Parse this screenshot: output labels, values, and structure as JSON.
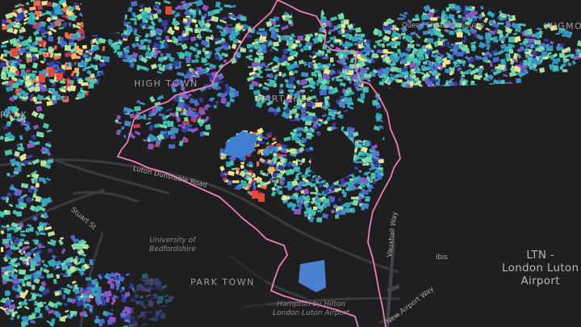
{
  "map": {
    "areas": [
      "HIGH TOWN",
      "HART HILL",
      "PARK TOWN",
      "WIGMORE",
      "PARK"
    ],
    "roads": {
      "luton_dunstable": "Luton Dunstable Road",
      "queen_elizabeth": "Queen Elizabeth Square",
      "stuart": "Stuart St",
      "vauxhall": "Vauxhall Way",
      "new_airport": "New Airport Way",
      "ibis": "ibis"
    },
    "pois": {
      "university": [
        "University of",
        "Bedfordshire"
      ],
      "hampton": [
        "Hampton by Hilton",
        "London Luton Airport"
      ]
    },
    "airport_label": [
      "LTN -",
      "London Luton",
      "Airport"
    ],
    "colors": {
      "background": "#1f1f21",
      "boundary": "#f07db4",
      "palette": [
        "#3a3fa3",
        "#4b6ad0",
        "#3d8fc4",
        "#2fa8bc",
        "#43c3b0",
        "#7ad8a4",
        "#b8e49a",
        "#f1e58c",
        "#f6b36a",
        "#ec6c4e",
        "#c93b53",
        "#8e55c6"
      ]
    }
  }
}
